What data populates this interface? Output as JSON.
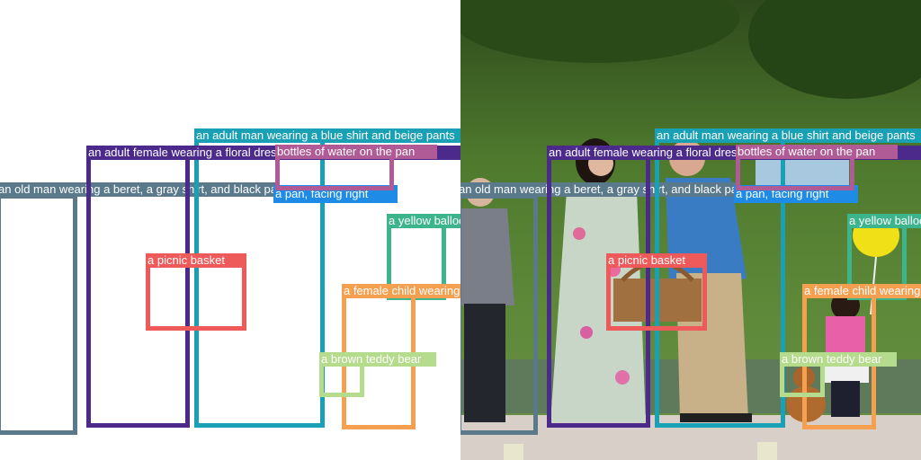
{
  "annotations": [
    {
      "label": "an old man wearing a beret, a gray shirt, and black pants",
      "color": "#5a7a8c"
    },
    {
      "label": "an adult female wearing a floral dress and holding forks",
      "color": "#4b2a8c"
    },
    {
      "label": "an adult man wearing a blue shirt and beige pants",
      "color": "#1aa0b4"
    },
    {
      "label": "bottles of water on the pan",
      "color": "#b05a96"
    },
    {
      "label": "a pan, facing right",
      "color": "#1e8ce6"
    },
    {
      "label": "a picnic basket",
      "color": "#ee5a5a"
    },
    {
      "label": "a yellow balloon",
      "color": "#3cb48c"
    },
    {
      "label": "a female child wearing a pink shirt",
      "color": "#f5a050"
    },
    {
      "label": "a brown teddy bear",
      "color": "#b4dc8c"
    }
  ]
}
